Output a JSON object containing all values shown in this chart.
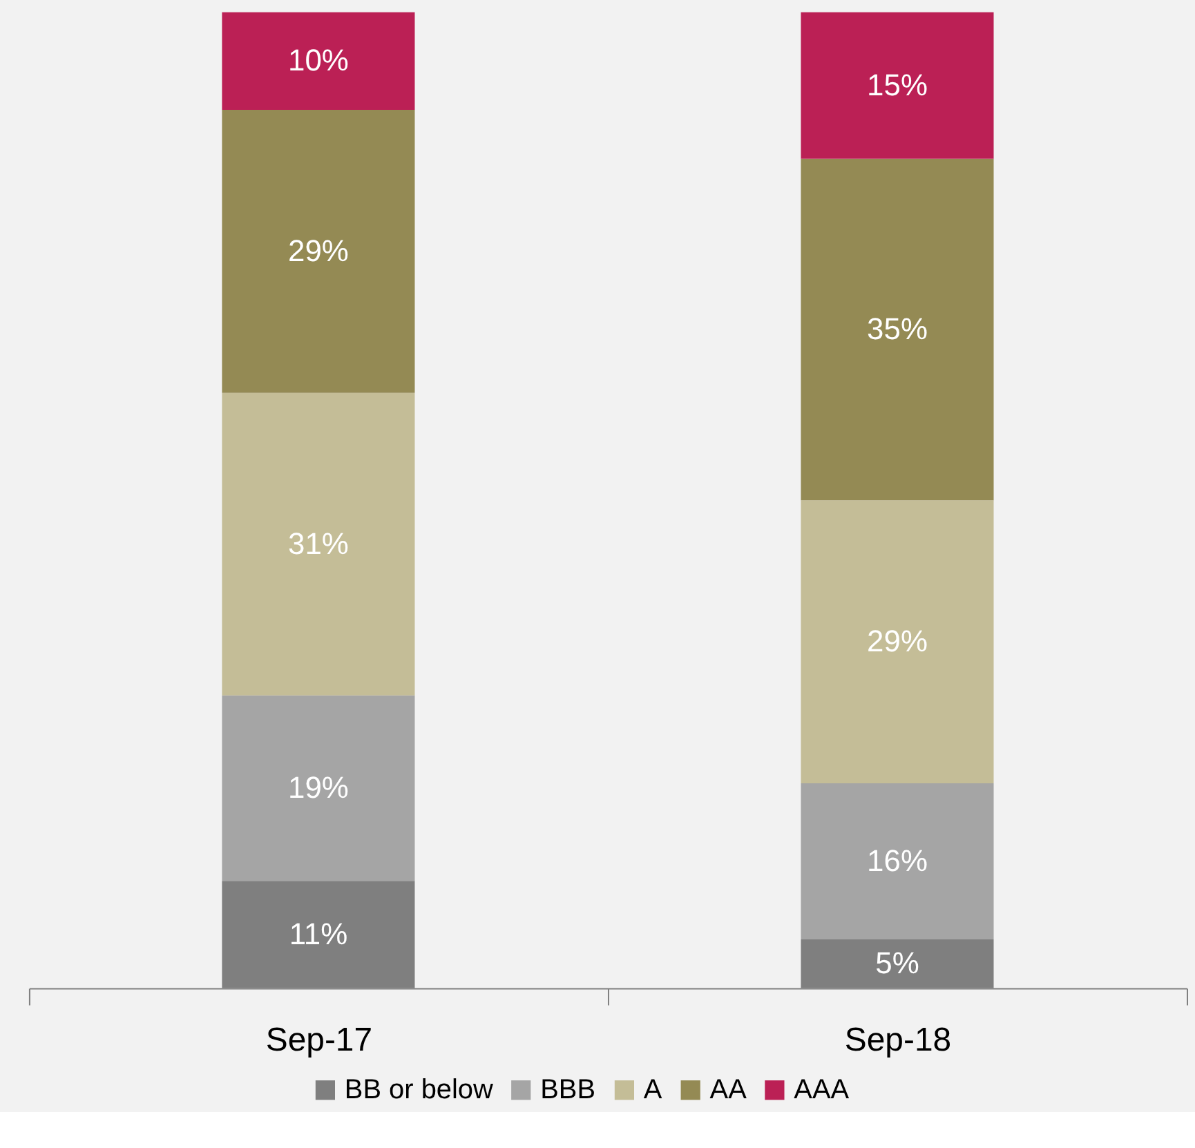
{
  "chart_data": {
    "type": "bar",
    "stacked": true,
    "categories": [
      "Sep-17",
      "Sep-18"
    ],
    "ylim": [
      0,
      100
    ],
    "tick_labels": "x",
    "grid": false,
    "legend": "bottom",
    "series": [
      {
        "name": "BB or below",
        "color": "#7f7f7f",
        "values": [
          11,
          5
        ],
        "value_labels": [
          "11%",
          "5%"
        ]
      },
      {
        "name": "BBB",
        "color": "#a5a5a5",
        "values": [
          19,
          16
        ],
        "value_labels": [
          "19%",
          "16%"
        ]
      },
      {
        "name": "A",
        "color": "#c4bd97",
        "values": [
          31,
          29
        ],
        "value_labels": [
          "31%",
          "29%"
        ]
      },
      {
        "name": "AA",
        "color": "#948a54",
        "values": [
          29,
          35
        ],
        "value_labels": [
          "29%",
          "35%"
        ]
      },
      {
        "name": "AAA",
        "color": "#bb2055",
        "values": [
          10,
          15
        ],
        "value_labels": [
          "10%",
          "15%"
        ]
      }
    ]
  }
}
